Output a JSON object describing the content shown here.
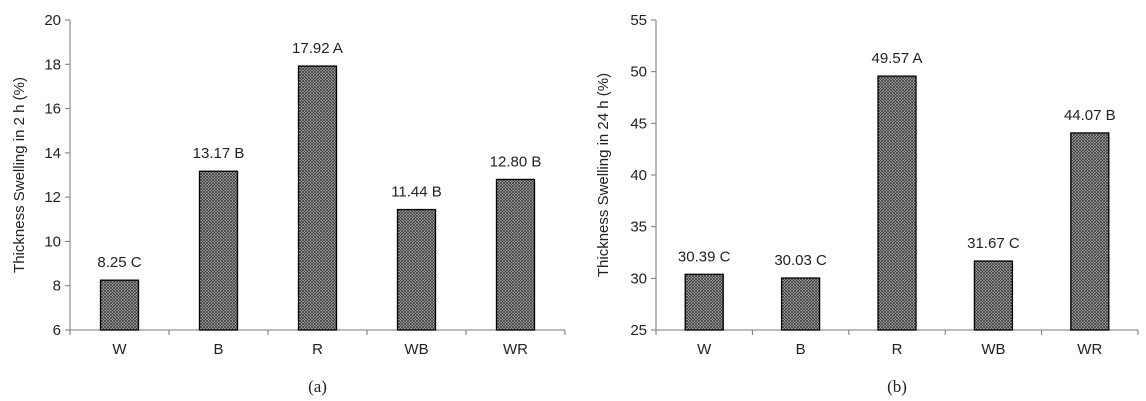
{
  "chart_data": [
    {
      "type": "bar",
      "caption": "(a)",
      "ylabel": "Thickness  Swelling in 2 h (%)",
      "xlabel": "",
      "ylim": [
        6,
        20
      ],
      "yticks": [
        6,
        8,
        10,
        12,
        14,
        16,
        18,
        20
      ],
      "categories": [
        "W",
        "B",
        "R",
        "WB",
        "WR"
      ],
      "values": [
        8.25,
        13.17,
        17.92,
        11.44,
        12.8
      ],
      "data_labels": [
        "8.25 C",
        "13.17 B",
        "17.92 A",
        "11.44 B",
        "12.80 B"
      ],
      "bar_fill": "crosshatch-gray",
      "grid": false,
      "legend": "none"
    },
    {
      "type": "bar",
      "caption": "(b)",
      "ylabel": "Thickness Swelling in 24 h (%)",
      "xlabel": "",
      "ylim": [
        25,
        55
      ],
      "yticks": [
        25,
        30,
        35,
        40,
        45,
        50,
        55
      ],
      "categories": [
        "W",
        "B",
        "R",
        "WB",
        "WR"
      ],
      "values": [
        30.39,
        30.03,
        49.57,
        31.67,
        44.07
      ],
      "data_labels": [
        "30.39 C",
        "30.03 C",
        "49.57 A",
        "31.67 C",
        "44.07 B"
      ],
      "bar_fill": "crosshatch-gray",
      "grid": false,
      "legend": "none"
    }
  ],
  "colors": {
    "bar_fill_dark": "#3a3a3a",
    "bar_fill_light": "#bdbdbd",
    "bar_stroke": "#000000",
    "axis": "#777777",
    "text": "#222222"
  }
}
